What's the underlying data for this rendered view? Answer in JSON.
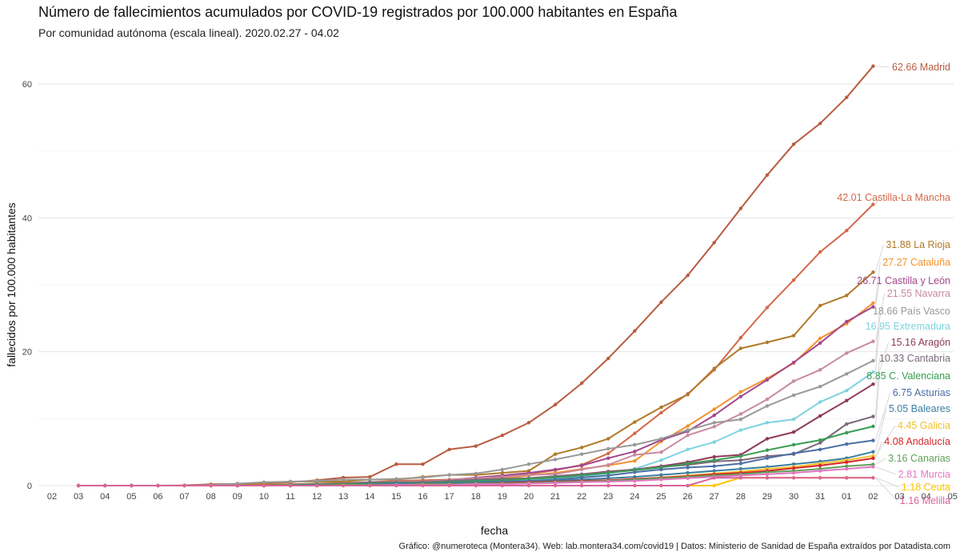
{
  "chart_data": {
    "type": "line",
    "title": "Número de fallecimientos acumulados por COVID-19 registrados por 100.000 habitantes en España",
    "subtitle": "Por comunidad autónoma (escala lineal). 2020.02.27 - 04.02",
    "caption": "Gráfico: @numeroteca (Montera34). Web: lab.montera34.com/covid19 | Datos: Ministerio de Sanidad de España extraídos por Datadista.com",
    "xlabel": "fecha",
    "ylabel": "fallecidos por 100.000 habitantes",
    "x_ticks": [
      "02",
      "03",
      "04",
      "05",
      "06",
      "07",
      "08",
      "09",
      "10",
      "11",
      "12",
      "13",
      "14",
      "15",
      "16",
      "17",
      "18",
      "19",
      "20",
      "21",
      "22",
      "23",
      "24",
      "25",
      "26",
      "27",
      "28",
      "29",
      "30",
      "31",
      "01",
      "02",
      "03",
      "04",
      "05"
    ],
    "y_ticks": [
      0,
      20,
      40,
      60
    ],
    "ylim": [
      -2,
      66
    ],
    "grid": true,
    "legend": "none",
    "dates": [
      "2020-03-03",
      "2020-03-04",
      "2020-03-05",
      "2020-03-06",
      "2020-03-07",
      "2020-03-08",
      "2020-03-09",
      "2020-03-10",
      "2020-03-11",
      "2020-03-12",
      "2020-03-13",
      "2020-03-14",
      "2020-03-15",
      "2020-03-16",
      "2020-03-17",
      "2020-03-18",
      "2020-03-19",
      "2020-03-20",
      "2020-03-21",
      "2020-03-22",
      "2020-03-23",
      "2020-03-24",
      "2020-03-25",
      "2020-03-26",
      "2020-03-27",
      "2020-03-28",
      "2020-03-29",
      "2020-03-30",
      "2020-03-31",
      "2020-04-01",
      "2020-04-02"
    ],
    "series": [
      {
        "name": "Madrid",
        "label": "62.66 Madrid",
        "color": "#b85c40",
        "values": [
          0,
          0,
          0,
          0,
          0.05,
          0.2,
          0.25,
          0.3,
          0.5,
          0.8,
          1.2,
          1.3,
          3.2,
          3.2,
          5.4,
          5.9,
          7.5,
          9.4,
          12.1,
          15.3,
          19,
          23.1,
          27.4,
          31.4,
          36.3,
          41.4,
          46.4,
          51,
          54.1,
          58,
          62.66
        ]
      },
      {
        "name": "Castilla-La Mancha",
        "label": "42.01 Castilla-La Mancha",
        "color": "#d2694a",
        "values": [
          0,
          0,
          0,
          0,
          0,
          0,
          0,
          0.1,
          0.2,
          0.3,
          0.4,
          0.5,
          0.7,
          0.8,
          0.9,
          1.1,
          1.2,
          1.7,
          2.3,
          3.1,
          4.8,
          7.8,
          10.9,
          13.7,
          17.3,
          22.1,
          26.6,
          30.7,
          34.9,
          38.1,
          42.01
        ]
      },
      {
        "name": "La Rioja",
        "label": "31.88 La Rioja",
        "color": "#b07a28",
        "values": [
          0,
          0,
          0,
          0,
          0,
          0,
          0,
          0.3,
          0.6,
          0.6,
          0.6,
          0.9,
          0.9,
          1.3,
          1.6,
          1.6,
          1.9,
          2.2,
          4.7,
          5.7,
          7.0,
          9.5,
          11.7,
          13.6,
          17.5,
          20.5,
          21.4,
          22.4,
          26.9,
          28.4,
          31.88
        ]
      },
      {
        "name": "Cataluña",
        "label": "27.27 Cataluña",
        "color": "#f39230",
        "values": [
          0,
          0,
          0,
          0,
          0,
          0,
          0,
          0,
          0,
          0.1,
          0.2,
          0.3,
          0.4,
          0.5,
          0.6,
          0.8,
          1.0,
          1.5,
          1.9,
          2.5,
          3.0,
          3.7,
          6.6,
          8.9,
          11.4,
          14.0,
          16.0,
          18.3,
          22.0,
          24.2,
          27.27
        ]
      },
      {
        "name": "Castilla y León",
        "label": "26.71 Castilla y León",
        "color": "#a3478c",
        "values": [
          0,
          0,
          0,
          0,
          0,
          0,
          0,
          0,
          0.1,
          0.2,
          0.3,
          0.4,
          0.5,
          0.6,
          0.8,
          1.2,
          1.5,
          1.9,
          2.4,
          3.0,
          4.1,
          5.1,
          6.8,
          8.1,
          10.5,
          13.3,
          15.8,
          18.4,
          21.3,
          24.5,
          26.71
        ]
      },
      {
        "name": "Navarra",
        "label": "21.55 Navarra",
        "color": "#c88aa0",
        "values": [
          0,
          0,
          0,
          0,
          0,
          0,
          0,
          0,
          0,
          0.2,
          0.3,
          0.5,
          0.6,
          0.6,
          0.8,
          1.1,
          1.3,
          1.6,
          1.7,
          2.4,
          3.1,
          4.6,
          5.0,
          7.5,
          8.8,
          10.7,
          12.9,
          15.6,
          17.3,
          19.8,
          21.55
        ]
      },
      {
        "name": "País Vasco",
        "label": "18.66 País Vasco",
        "color": "#999999",
        "values": [
          0,
          0,
          0,
          0,
          0,
          0.1,
          0.3,
          0.5,
          0.6,
          0.7,
          0.9,
          0.9,
          1.0,
          1.2,
          1.6,
          1.8,
          2.4,
          3.2,
          3.9,
          4.7,
          5.5,
          6.1,
          7.0,
          8.3,
          9.4,
          9.9,
          11.9,
          13.5,
          14.8,
          16.7,
          18.66
        ]
      },
      {
        "name": "Extremadura",
        "label": "16.95 Extremadura",
        "color": "#7fd2e0",
        "values": [
          0,
          0,
          0,
          0,
          0,
          0,
          0,
          0,
          0,
          0.1,
          0.1,
          0.2,
          0.3,
          0.3,
          0.4,
          0.5,
          0.7,
          0.9,
          1.1,
          1.4,
          1.8,
          2.5,
          3.8,
          5.4,
          6.5,
          8.3,
          9.4,
          9.9,
          12.5,
          14.2,
          16.95
        ]
      },
      {
        "name": "Aragón",
        "label": "15.16 Aragón",
        "color": "#8e3a5c",
        "values": [
          0,
          0,
          0,
          0,
          0,
          0,
          0,
          0,
          0,
          0.1,
          0.2,
          0.3,
          0.4,
          0.5,
          0.6,
          0.8,
          0.9,
          1.1,
          1.4,
          1.7,
          2.1,
          2.4,
          2.9,
          3.5,
          4.3,
          4.6,
          7.0,
          8.0,
          10.4,
          12.7,
          15.16
        ]
      },
      {
        "name": "Cantabria",
        "label": "10.33 Cantabria",
        "color": "#7a6a7a",
        "values": [
          0,
          0,
          0,
          0,
          0,
          0,
          0,
          0,
          0.1,
          0.2,
          0.3,
          0.5,
          0.5,
          0.5,
          0.7,
          0.9,
          1.0,
          1.1,
          1.4,
          1.7,
          2.0,
          2.4,
          2.8,
          3.1,
          3.6,
          3.8,
          4.4,
          4.7,
          6.4,
          9.2,
          10.33
        ]
      },
      {
        "name": "C. Valenciana",
        "label": "8.85 C. Valenciana",
        "color": "#3a9c54",
        "values": [
          0,
          0,
          0,
          0,
          0,
          0,
          0,
          0,
          0.1,
          0.2,
          0.2,
          0.3,
          0.4,
          0.4,
          0.5,
          0.7,
          0.8,
          1.0,
          1.2,
          1.5,
          1.9,
          2.3,
          2.7,
          3.3,
          3.8,
          4.4,
          5.3,
          6.1,
          6.8,
          7.9,
          8.85
        ]
      },
      {
        "name": "Asturias",
        "label": "6.75 Asturias",
        "color": "#4a6fa5",
        "values": [
          0,
          0,
          0,
          0,
          0,
          0,
          0,
          0,
          0,
          0.1,
          0.1,
          0.2,
          0.3,
          0.3,
          0.4,
          0.5,
          0.6,
          0.7,
          0.9,
          1.2,
          1.5,
          2.0,
          2.4,
          2.7,
          2.9,
          3.3,
          4.1,
          4.8,
          5.4,
          6.2,
          6.75
        ]
      },
      {
        "name": "Baleares",
        "label": "5.05 Baleares",
        "color": "#3b7fa0",
        "values": [
          0,
          0,
          0,
          0,
          0,
          0,
          0,
          0,
          0,
          0,
          0.1,
          0.1,
          0.2,
          0.2,
          0.3,
          0.4,
          0.5,
          0.6,
          0.8,
          0.9,
          1.1,
          1.3,
          1.6,
          1.9,
          2.2,
          2.5,
          2.8,
          3.2,
          3.6,
          4.1,
          5.05
        ]
      },
      {
        "name": "Galicia",
        "label": "4.45 Galicia",
        "color": "#f2c12e",
        "values": [
          0,
          0,
          0,
          0,
          0,
          0,
          0,
          0,
          0,
          0,
          0.1,
          0.1,
          0.1,
          0.2,
          0.2,
          0.3,
          0.3,
          0.4,
          0.5,
          0.6,
          0.7,
          0.9,
          1.2,
          1.5,
          1.8,
          2.1,
          2.5,
          2.8,
          3.3,
          3.8,
          4.45
        ]
      },
      {
        "name": "Andalucía",
        "label": "4.08 Andalucía",
        "color": "#d62728",
        "values": [
          0,
          0,
          0,
          0,
          0,
          0,
          0,
          0,
          0,
          0,
          0.1,
          0.1,
          0.1,
          0.2,
          0.2,
          0.3,
          0.4,
          0.5,
          0.6,
          0.7,
          0.8,
          1.0,
          1.2,
          1.4,
          1.7,
          1.9,
          2.2,
          2.6,
          3.0,
          3.5,
          4.08
        ]
      },
      {
        "name": "Canarias",
        "label": "3.16 Canarias",
        "color": "#5fa05a",
        "values": [
          0,
          0,
          0,
          0,
          0,
          0,
          0,
          0,
          0,
          0,
          0.1,
          0.1,
          0.1,
          0.2,
          0.2,
          0.3,
          0.3,
          0.4,
          0.5,
          0.6,
          0.7,
          0.9,
          1.1,
          1.3,
          1.5,
          1.7,
          2.0,
          2.2,
          2.5,
          2.9,
          3.16
        ]
      },
      {
        "name": "Murcia",
        "label": "2.81 Murcia",
        "color": "#e377c2",
        "values": [
          0,
          0,
          0,
          0,
          0,
          0,
          0,
          0,
          0,
          0,
          0,
          0,
          0.1,
          0.1,
          0.1,
          0.2,
          0.2,
          0.3,
          0.4,
          0.5,
          0.6,
          0.7,
          0.9,
          1.1,
          1.3,
          1.5,
          1.7,
          1.9,
          2.2,
          2.5,
          2.81
        ]
      },
      {
        "name": "Ceuta",
        "label": "1.18 Ceuta",
        "color": "#ffc400",
        "values": [
          0,
          0,
          0,
          0,
          0,
          0,
          0,
          0,
          0,
          0,
          0,
          0,
          0,
          0,
          0,
          0,
          0,
          0,
          0,
          0,
          0,
          0,
          0,
          0,
          0,
          1.18,
          1.18,
          1.18,
          1.18,
          1.18,
          1.18
        ]
      },
      {
        "name": "Melilla",
        "label": "1.16 Melilla",
        "color": "#d8649a",
        "values": [
          0,
          0,
          0,
          0,
          0,
          0,
          0,
          0,
          0,
          0,
          0,
          0,
          0,
          0,
          0,
          0,
          0,
          0,
          0,
          0,
          0,
          0,
          0,
          0,
          1.16,
          1.16,
          1.16,
          1.16,
          1.16,
          1.16,
          1.16
        ]
      }
    ]
  }
}
